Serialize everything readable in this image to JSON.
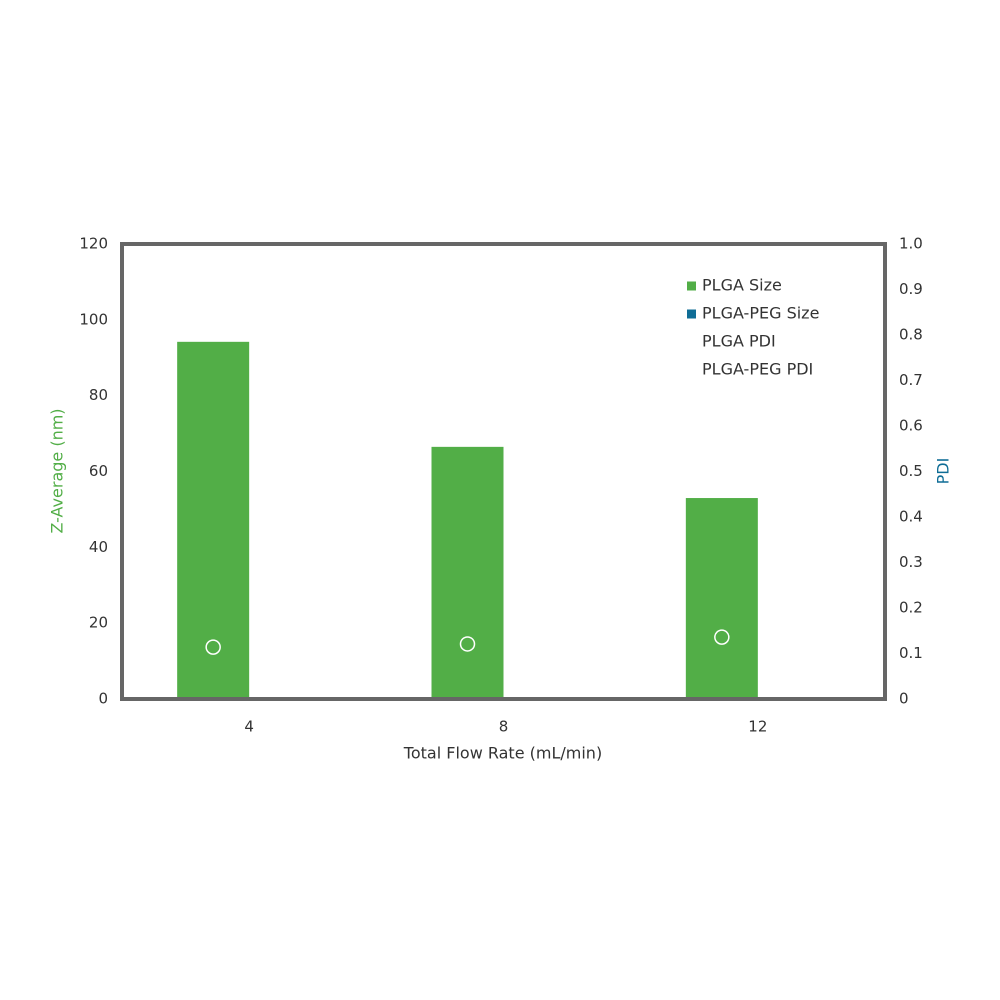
{
  "chart_data": {
    "type": "bar",
    "categories": [
      "4",
      "8",
      "12"
    ],
    "x_label": "Total Flow Rate (mL/min)",
    "y_label": "Z-Average (nm)",
    "y2_label": "PDI",
    "y_label_color": "#52ae47",
    "y2_label_color": "#0f6d96",
    "ylim": [
      0,
      120
    ],
    "yticks": [
      0,
      20,
      40,
      60,
      80,
      100,
      120
    ],
    "y2lim": [
      0,
      1
    ],
    "y2ticks": [
      0,
      0.1,
      0.2,
      0.3,
      0.4,
      0.5,
      0.6,
      0.7,
      0.8,
      0.9,
      {
        "value": 1,
        "label": "1.0"
      }
    ],
    "legend": "top-right",
    "series": [
      {
        "name": "PLGA Size",
        "type": "bar",
        "color": "#52ae47",
        "values": [
          94.2,
          66.5,
          53.0
        ]
      },
      {
        "name": "PLGA-PEG Size",
        "type": "bar",
        "color": "#0f6d96",
        "values": [
          null,
          null,
          null
        ]
      },
      {
        "name": "PLGA PDI",
        "type": "scatter",
        "axis": "y2",
        "color": "#ffffff",
        "values": [
          0.114,
          0.121,
          0.136
        ]
      },
      {
        "name": "PLGA-PEG PDI",
        "type": "scatter",
        "axis": "y2",
        "color": "#ffffff",
        "values": [
          null,
          null,
          null
        ]
      }
    ]
  }
}
